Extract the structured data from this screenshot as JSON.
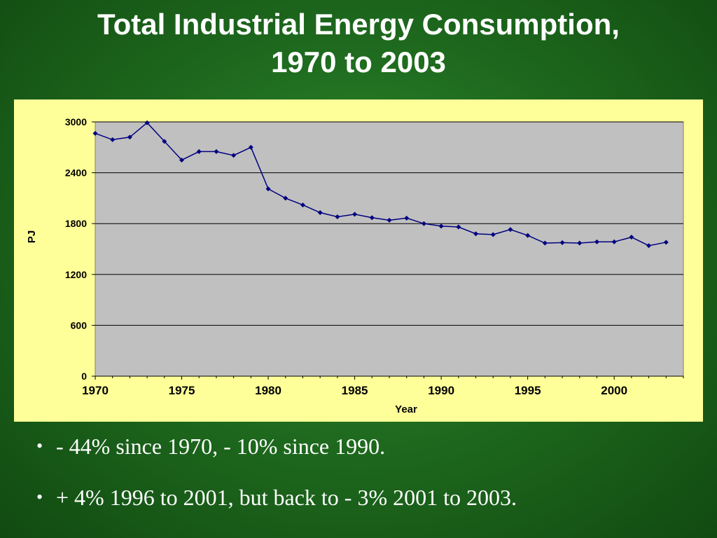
{
  "slide": {
    "title_line1": "Total Industrial Energy Consumption,",
    "title_line2": "1970 to 2003",
    "bullets": [
      "- 44% since 1970, - 10% since 1990.",
      "+ 4% 1996 to 2001, but back to - 3% 2001 to 2003."
    ],
    "bullet_glyph": "•"
  },
  "colors": {
    "background": "#1f6b1f",
    "chart_panel": "#ffff99",
    "plot_area": "#c0c0c0",
    "series_line": "#000080"
  },
  "chart_data": {
    "type": "line",
    "title": "",
    "xlabel": "Year",
    "ylabel": "PJ",
    "xlim": [
      1970,
      2004
    ],
    "ylim": [
      0,
      3000
    ],
    "x_ticks": [
      1970,
      1975,
      1980,
      1985,
      1990,
      1995,
      2000
    ],
    "y_ticks": [
      0,
      600,
      1200,
      1800,
      2400,
      3000
    ],
    "grid": true,
    "legend": "none",
    "series": [
      {
        "name": "",
        "x": [
          1970,
          1971,
          1972,
          1973,
          1974,
          1975,
          1976,
          1977,
          1978,
          1979,
          1980,
          1981,
          1982,
          1983,
          1984,
          1985,
          1986,
          1987,
          1988,
          1989,
          1990,
          1991,
          1992,
          1993,
          1994,
          1995,
          1996,
          1997,
          1998,
          1999,
          2000,
          2001,
          2002,
          2003
        ],
        "values": [
          2865,
          2790,
          2820,
          2990,
          2770,
          2550,
          2650,
          2650,
          2605,
          2700,
          2210,
          2100,
          2020,
          1930,
          1880,
          1910,
          1870,
          1840,
          1865,
          1800,
          1770,
          1760,
          1680,
          1670,
          1730,
          1660,
          1570,
          1575,
          1570,
          1585,
          1585,
          1640,
          1540,
          1580
        ]
      }
    ]
  }
}
